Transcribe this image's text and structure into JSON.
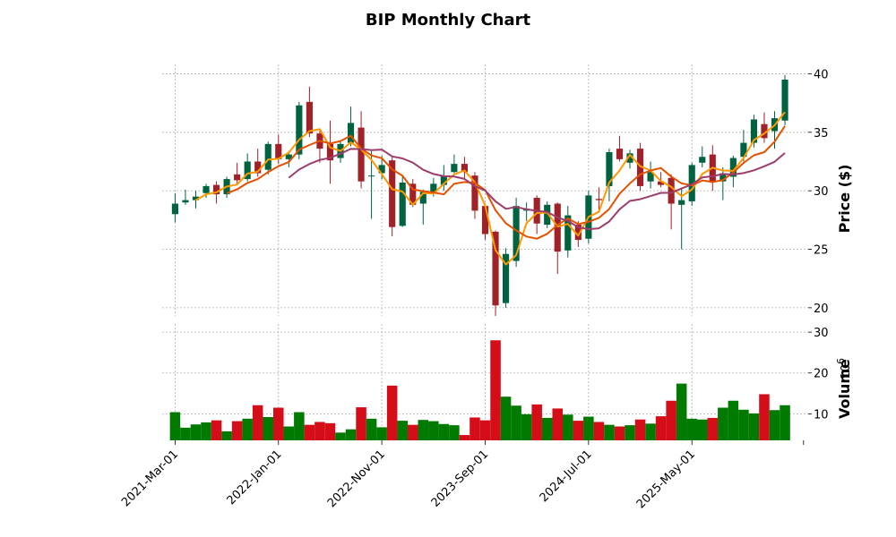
{
  "chart_data": {
    "type": "candlestick",
    "title": "BIP Monthly Chart",
    "ylabel_price": "Price ($)",
    "ylabel_volume": "Volume",
    "volume_exponent_label": "10",
    "volume_exponent_power": "6",
    "price_ylim": [
      19.3,
      40.8
    ],
    "price_ticks": [
      "20",
      "25",
      "30",
      "35",
      "40"
    ],
    "volume_ylim": [
      3.5,
      32
    ],
    "volume_ticks": [
      "10",
      "20",
      "30"
    ],
    "x_tick_labels": [
      {
        "index": 0,
        "label": "2021-Mar-01"
      },
      {
        "index": 10,
        "label": "2022-Jan-01"
      },
      {
        "index": 20,
        "label": "2022-Nov-01"
      },
      {
        "index": 30,
        "label": "2023-Sep-01"
      },
      {
        "index": 40,
        "label": "2024-Jul-01"
      },
      {
        "index": 50,
        "label": "2025-May-01"
      }
    ],
    "up_color": "#006340",
    "down_color": "#A02128",
    "vol_up_color": "#007A00",
    "vol_down_color": "#D50D18",
    "ma_colors": [
      "#FF9800",
      "#E65100",
      "#9C3D6E"
    ],
    "ma_periods": [
      3,
      6,
      12
    ],
    "candles": [
      {
        "date": "2021-Mar",
        "o": 28.0,
        "h": 29.8,
        "l": 27.3,
        "c": 28.9,
        "v": 10.4
      },
      {
        "date": "2021-Apr",
        "o": 29.0,
        "h": 30.1,
        "l": 28.8,
        "c": 29.2,
        "v": 6.6
      },
      {
        "date": "2021-May",
        "o": 29.2,
        "h": 30.0,
        "l": 28.5,
        "c": 29.5,
        "v": 7.4
      },
      {
        "date": "2021-Jun",
        "o": 29.8,
        "h": 30.6,
        "l": 29.4,
        "c": 30.4,
        "v": 7.9
      },
      {
        "date": "2021-Jul",
        "o": 30.5,
        "h": 30.8,
        "l": 28.9,
        "c": 29.7,
        "v": 8.4
      },
      {
        "date": "2021-Aug",
        "o": 29.7,
        "h": 31.2,
        "l": 29.4,
        "c": 31.0,
        "v": 5.7
      },
      {
        "date": "2021-Sep",
        "o": 31.4,
        "h": 32.4,
        "l": 30.5,
        "c": 30.9,
        "v": 8.2
      },
      {
        "date": "2021-Oct",
        "o": 31.0,
        "h": 33.2,
        "l": 30.8,
        "c": 32.5,
        "v": 8.8
      },
      {
        "date": "2021-Nov",
        "o": 32.5,
        "h": 33.6,
        "l": 31.2,
        "c": 31.5,
        "v": 12.1
      },
      {
        "date": "2021-Dec",
        "o": 31.8,
        "h": 34.2,
        "l": 31.4,
        "c": 34.0,
        "v": 9.2
      },
      {
        "date": "2022-Jan",
        "o": 34.0,
        "h": 34.8,
        "l": 32.3,
        "c": 32.7,
        "v": 11.5
      },
      {
        "date": "2022-Feb",
        "o": 32.7,
        "h": 33.4,
        "l": 32.0,
        "c": 33.1,
        "v": 6.9
      },
      {
        "date": "2022-Mar",
        "o": 33.1,
        "h": 37.6,
        "l": 32.7,
        "c": 37.3,
        "v": 10.4
      },
      {
        "date": "2022-Apr",
        "o": 37.6,
        "h": 38.9,
        "l": 34.6,
        "c": 34.9,
        "v": 7.3
      },
      {
        "date": "2022-May",
        "o": 34.9,
        "h": 35.2,
        "l": 32.4,
        "c": 33.6,
        "v": 8.0
      },
      {
        "date": "2022-Jun",
        "o": 34.0,
        "h": 36.0,
        "l": 30.6,
        "c": 32.6,
        "v": 7.7
      },
      {
        "date": "2022-Jul",
        "o": 32.8,
        "h": 34.3,
        "l": 32.4,
        "c": 34.0,
        "v": 5.4
      },
      {
        "date": "2022-Aug",
        "o": 34.1,
        "h": 37.2,
        "l": 33.8,
        "c": 35.8,
        "v": 6.2
      },
      {
        "date": "2022-Sep",
        "o": 35.4,
        "h": 36.8,
        "l": 30.2,
        "c": 30.8,
        "v": 11.6
      },
      {
        "date": "2022-Oct",
        "o": 31.3,
        "h": 33.4,
        "l": 27.6,
        "c": 31.3,
        "v": 8.8
      },
      {
        "date": "2022-Nov",
        "o": 31.5,
        "h": 33.0,
        "l": 31.0,
        "c": 32.2,
        "v": 6.7
      },
      {
        "date": "2022-Dec",
        "o": 32.6,
        "h": 33.0,
        "l": 26.1,
        "c": 26.9,
        "v": 16.9
      },
      {
        "date": "2023-Jan",
        "o": 27.0,
        "h": 31.2,
        "l": 26.9,
        "c": 30.7,
        "v": 8.3
      },
      {
        "date": "2023-Feb",
        "o": 30.6,
        "h": 31.0,
        "l": 28.6,
        "c": 28.8,
        "v": 7.3
      },
      {
        "date": "2023-Mar",
        "o": 28.9,
        "h": 30.1,
        "l": 27.1,
        "c": 29.9,
        "v": 8.5
      },
      {
        "date": "2023-Apr",
        "o": 29.8,
        "h": 31.1,
        "l": 29.5,
        "c": 30.6,
        "v": 8.2
      },
      {
        "date": "2023-May",
        "o": 30.5,
        "h": 32.2,
        "l": 30.0,
        "c": 31.3,
        "v": 7.5
      },
      {
        "date": "2023-Jun",
        "o": 31.6,
        "h": 33.1,
        "l": 31.5,
        "c": 32.3,
        "v": 7.2
      },
      {
        "date": "2023-Jul",
        "o": 32.3,
        "h": 32.9,
        "l": 31.0,
        "c": 31.6,
        "v": 4.8
      },
      {
        "date": "2023-Aug",
        "o": 31.3,
        "h": 31.6,
        "l": 27.6,
        "c": 28.3,
        "v": 9.1
      },
      {
        "date": "2023-Sep",
        "o": 28.7,
        "h": 28.9,
        "l": 25.8,
        "c": 26.3,
        "v": 8.4
      },
      {
        "date": "2023-Oct",
        "o": 26.5,
        "h": 26.6,
        "l": 19.3,
        "c": 20.2,
        "v": 28.0
      },
      {
        "date": "2023-Nov",
        "o": 20.4,
        "h": 25.1,
        "l": 20.0,
        "c": 24.6,
        "v": 14.2
      },
      {
        "date": "2023-Dec",
        "o": 24.0,
        "h": 29.4,
        "l": 23.5,
        "c": 28.7,
        "v": 12.0
      },
      {
        "date": "2024-Jan",
        "o": 28.3,
        "h": 29.0,
        "l": 27.4,
        "c": 28.4,
        "v": 9.9
      },
      {
        "date": "2024-Feb",
        "o": 29.4,
        "h": 29.6,
        "l": 26.3,
        "c": 27.2,
        "v": 12.3
      },
      {
        "date": "2024-Mar",
        "o": 27.1,
        "h": 29.1,
        "l": 26.8,
        "c": 28.8,
        "v": 9.0
      },
      {
        "date": "2024-Apr",
        "o": 28.9,
        "h": 29.0,
        "l": 22.9,
        "c": 24.8,
        "v": 11.3
      },
      {
        "date": "2024-May",
        "o": 24.9,
        "h": 28.7,
        "l": 24.3,
        "c": 27.9,
        "v": 9.8
      },
      {
        "date": "2024-Jun",
        "o": 27.1,
        "h": 27.4,
        "l": 25.2,
        "c": 25.8,
        "v": 8.3
      },
      {
        "date": "2024-Jul",
        "o": 25.9,
        "h": 30.0,
        "l": 25.5,
        "c": 29.6,
        "v": 9.3
      },
      {
        "date": "2024-Aug",
        "o": 29.3,
        "h": 30.3,
        "l": 28.2,
        "c": 29.2,
        "v": 8.0
      },
      {
        "date": "2024-Sep",
        "o": 30.4,
        "h": 33.6,
        "l": 29.1,
        "c": 33.3,
        "v": 7.3
      },
      {
        "date": "2024-Oct",
        "o": 33.6,
        "h": 34.7,
        "l": 32.5,
        "c": 32.7,
        "v": 6.9
      },
      {
        "date": "2024-Nov",
        "o": 32.4,
        "h": 33.5,
        "l": 31.9,
        "c": 33.2,
        "v": 7.2
      },
      {
        "date": "2024-Dec",
        "o": 33.6,
        "h": 34.1,
        "l": 30.0,
        "c": 30.4,
        "v": 8.6
      },
      {
        "date": "2025-Jan",
        "o": 30.8,
        "h": 32.5,
        "l": 30.2,
        "c": 31.6,
        "v": 7.6
      },
      {
        "date": "2025-Feb",
        "o": 30.8,
        "h": 31.6,
        "l": 30.3,
        "c": 30.5,
        "v": 9.4
      },
      {
        "date": "2025-Mar",
        "o": 31.1,
        "h": 31.4,
        "l": 26.7,
        "c": 28.9,
        "v": 13.2
      },
      {
        "date": "2025-Apr",
        "o": 28.8,
        "h": 30.2,
        "l": 25.0,
        "c": 29.2,
        "v": 17.4
      },
      {
        "date": "2025-May",
        "o": 29.1,
        "h": 32.4,
        "l": 28.7,
        "c": 32.2,
        "v": 8.8
      },
      {
        "date": "2025-Jun",
        "o": 32.4,
        "h": 33.8,
        "l": 32.0,
        "c": 32.9,
        "v": 8.6
      },
      {
        "date": "2025-Jul",
        "o": 33.1,
        "h": 33.9,
        "l": 30.0,
        "c": 30.8,
        "v": 9.0
      },
      {
        "date": "2025-Aug",
        "o": 30.8,
        "h": 32.0,
        "l": 29.2,
        "c": 31.5,
        "v": 11.5
      },
      {
        "date": "2025-Sep",
        "o": 31.2,
        "h": 33.0,
        "l": 30.3,
        "c": 32.8,
        "v": 13.2
      },
      {
        "date": "2025-Oct",
        "o": 32.9,
        "h": 35.2,
        "l": 32.5,
        "c": 34.1,
        "v": 11.0
      },
      {
        "date": "2025-Nov",
        "o": 34.1,
        "h": 36.5,
        "l": 33.7,
        "c": 36.1,
        "v": 10.1
      },
      {
        "date": "2025-Dec",
        "o": 35.7,
        "h": 36.7,
        "l": 34.1,
        "c": 34.5,
        "v": 14.8
      },
      {
        "date": "2026-Jan",
        "o": 35.1,
        "h": 36.8,
        "l": 33.6,
        "c": 36.2,
        "v": 10.9
      },
      {
        "date": "2026-Feb",
        "o": 36.0,
        "h": 39.9,
        "l": 35.6,
        "c": 39.5,
        "v": 12.1
      }
    ]
  }
}
